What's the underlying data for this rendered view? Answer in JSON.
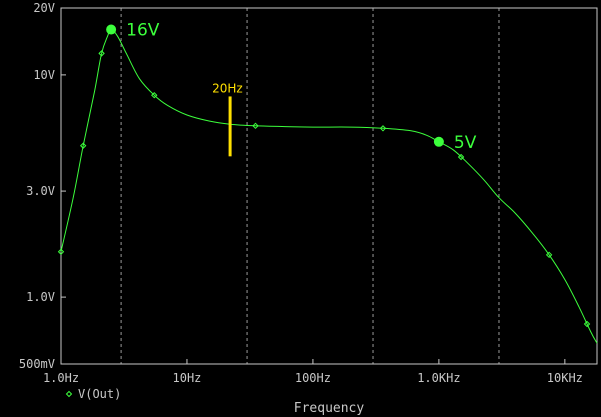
{
  "chart_data": {
    "type": "line",
    "title": "",
    "xlabel": "Frequency",
    "ylabel": "",
    "x_scale": "log",
    "y_scale": "log",
    "xlim": [
      1,
      18000
    ],
    "ylim": [
      0.5,
      20
    ],
    "x_tick_labels": [
      {
        "value": 1,
        "label": "1.0Hz"
      },
      {
        "value": 10,
        "label": "10Hz"
      },
      {
        "value": 100,
        "label": "100Hz"
      },
      {
        "value": 1000,
        "label": "1.0KHz"
      },
      {
        "value": 10000,
        "label": "10KHz"
      }
    ],
    "y_tick_labels": [
      {
        "value": 20,
        "label": "20V"
      },
      {
        "value": 10,
        "label": "10V"
      },
      {
        "value": 3,
        "label": "3.0V"
      },
      {
        "value": 1,
        "label": "1.0V"
      },
      {
        "value": 0.5,
        "label": "500mV"
      }
    ],
    "x_gridlines": [
      3,
      30,
      300,
      3000
    ],
    "y_gridlines": [],
    "grid": true,
    "legend_placement": "bottom-left",
    "series": [
      {
        "name": "V(Out)",
        "color": "#3cff3c",
        "points": [
          [
            1.0,
            1.6
          ],
          [
            1.25,
            2.8
          ],
          [
            1.5,
            4.8
          ],
          [
            1.85,
            8.5
          ],
          [
            2.1,
            12.5
          ],
          [
            2.35,
            15.0
          ],
          [
            2.5,
            16.0
          ],
          [
            2.8,
            15.0
          ],
          [
            3.3,
            12.5
          ],
          [
            4.2,
            9.6
          ],
          [
            5.5,
            8.1
          ],
          [
            7,
            7.3
          ],
          [
            10,
            6.6
          ],
          [
            15,
            6.2
          ],
          [
            22,
            6.0
          ],
          [
            35,
            5.9
          ],
          [
            60,
            5.85
          ],
          [
            100,
            5.82
          ],
          [
            200,
            5.82
          ],
          [
            360,
            5.75
          ],
          [
            600,
            5.6
          ],
          [
            800,
            5.35
          ],
          [
            1000,
            5.0
          ],
          [
            1300,
            4.6
          ],
          [
            1700,
            4.0
          ],
          [
            2300,
            3.35
          ],
          [
            3000,
            2.8
          ],
          [
            4000,
            2.4
          ],
          [
            5500,
            1.95
          ],
          [
            7500,
            1.55
          ],
          [
            10000,
            1.2
          ],
          [
            13000,
            0.9
          ],
          [
            16000,
            0.7
          ],
          [
            18000,
            0.62
          ]
        ],
        "markers": [
          1.0,
          1.5,
          2.1,
          5.5,
          35,
          360,
          1500,
          7500,
          15000
        ]
      }
    ],
    "annotations": [
      {
        "label": "16V",
        "x": 2.5,
        "y": 16,
        "color": "#3cff3c",
        "style": "dot"
      },
      {
        "label": "5V",
        "x": 1000,
        "y": 5,
        "color": "#3cff3c",
        "style": "dot"
      },
      {
        "label": "20Hz",
        "x": 22,
        "y_range": [
          4.3,
          8.0
        ],
        "color": "#ffe000",
        "style": "vline"
      }
    ]
  }
}
